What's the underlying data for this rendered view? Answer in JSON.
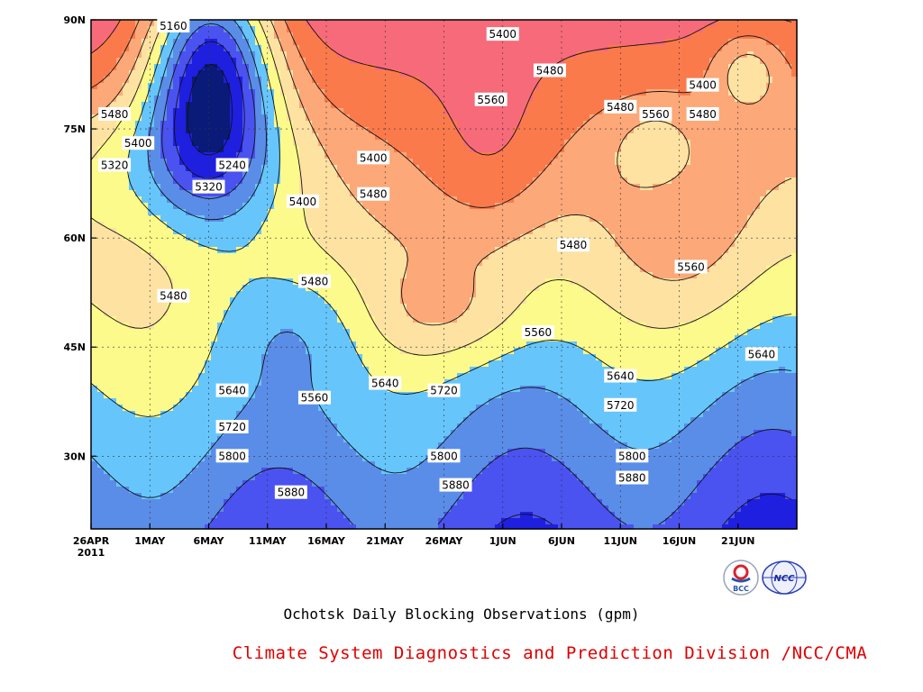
{
  "chart_data": {
    "type": "contour",
    "title": "Ochotsk Daily Blocking Observations (gpm)",
    "x_axis": {
      "tick_labels": [
        "26APR",
        "1MAY",
        "6MAY",
        "11MAY",
        "16MAY",
        "21MAY",
        "26MAY",
        "1JUN",
        "6JUN",
        "11JUN",
        "16JUN",
        "21JUN"
      ],
      "first_tick_year": "2011",
      "range": [
        "2011-04-26",
        "2011-06-25"
      ]
    },
    "y_axis": {
      "tick_labels": [
        "30N",
        "45N",
        "60N",
        "75N",
        "90N"
      ],
      "range": [
        20,
        90
      ]
    },
    "contour_levels": [
      5160,
      5240,
      5320,
      5400,
      5480,
      5560,
      5640,
      5720,
      5800,
      5880
    ],
    "contour_labels": [
      {
        "text": "5160",
        "date": "2011-05-03",
        "lat": 90
      },
      {
        "text": "5480",
        "date": "2011-04-28",
        "lat": 77
      },
      {
        "text": "5400",
        "date": "2011-04-30",
        "lat": 73
      },
      {
        "text": "5320",
        "date": "2011-04-28",
        "lat": 70
      },
      {
        "text": "5240",
        "date": "2011-05-08",
        "lat": 70
      },
      {
        "text": "5320",
        "date": "2011-05-06",
        "lat": 67
      },
      {
        "text": "5400",
        "date": "2011-05-14",
        "lat": 65
      },
      {
        "text": "5400",
        "date": "2011-05-20",
        "lat": 71
      },
      {
        "text": "5480",
        "date": "2011-05-20",
        "lat": 66
      },
      {
        "text": "5480",
        "date": "2011-05-03",
        "lat": 52
      },
      {
        "text": "5480",
        "date": "2011-05-15",
        "lat": 54
      },
      {
        "text": "5400",
        "date": "2011-05-31",
        "lat": 88
      },
      {
        "text": "5480",
        "date": "2011-06-04",
        "lat": 83
      },
      {
        "text": "5560",
        "date": "2011-05-30",
        "lat": 79
      },
      {
        "text": "5480",
        "date": "2011-06-10",
        "lat": 78
      },
      {
        "text": "5560",
        "date": "2011-06-13",
        "lat": 77
      },
      {
        "text": "5400",
        "date": "2011-06-17",
        "lat": 81
      },
      {
        "text": "5480",
        "date": "2011-06-17",
        "lat": 77
      },
      {
        "text": "5480",
        "date": "2011-06-06",
        "lat": 59
      },
      {
        "text": "5560",
        "date": "2011-06-16",
        "lat": 56
      },
      {
        "text": "5560",
        "date": "2011-06-03",
        "lat": 47
      },
      {
        "text": "5640",
        "date": "2011-06-22",
        "lat": 44
      },
      {
        "text": "5640",
        "date": "2011-05-08",
        "lat": 39
      },
      {
        "text": "5560",
        "date": "2011-05-15",
        "lat": 38
      },
      {
        "text": "5640",
        "date": "2011-05-21",
        "lat": 40
      },
      {
        "text": "5720",
        "date": "2011-05-08",
        "lat": 34
      },
      {
        "text": "5720",
        "date": "2011-05-26",
        "lat": 39
      },
      {
        "text": "5640",
        "date": "2011-06-10",
        "lat": 41
      },
      {
        "text": "5720",
        "date": "2011-06-10",
        "lat": 37
      },
      {
        "text": "5800",
        "date": "2011-05-08",
        "lat": 30
      },
      {
        "text": "5800",
        "date": "2011-05-26",
        "lat": 30
      },
      {
        "text": "5800",
        "date": "2011-06-11",
        "lat": 30
      },
      {
        "text": "5880",
        "date": "2011-05-13",
        "lat": 25
      },
      {
        "text": "5880",
        "date": "2011-05-27",
        "lat": 26
      },
      {
        "text": "5880",
        "date": "2011-06-11",
        "lat": 27
      }
    ],
    "fill_colors": {
      "below_5160": "#0a1a78",
      "5160_5240": "#1f1fe0",
      "5240_5320": "#4a52f0",
      "5320_5400": "#5a8de8",
      "5400_5480": "#66c6fc",
      "5480_5560": "#fcfa8a",
      "5560_5640": "#fde2a2",
      "5640_5720": "#fca878",
      "5720_5800": "#fb7a4c",
      "5800_5880": "#f76a7a",
      "above_5880": "#ee3c4a"
    },
    "grid": true
  },
  "caption": "Ochotsk Daily Blocking Observations (gpm)",
  "footer": "Climate System Diagnostics and Prediction Division /NCC/CMA",
  "logos": [
    {
      "name": "bcc-logo",
      "text": "BCC"
    },
    {
      "name": "ncc-logo",
      "text": "NCC"
    }
  ]
}
